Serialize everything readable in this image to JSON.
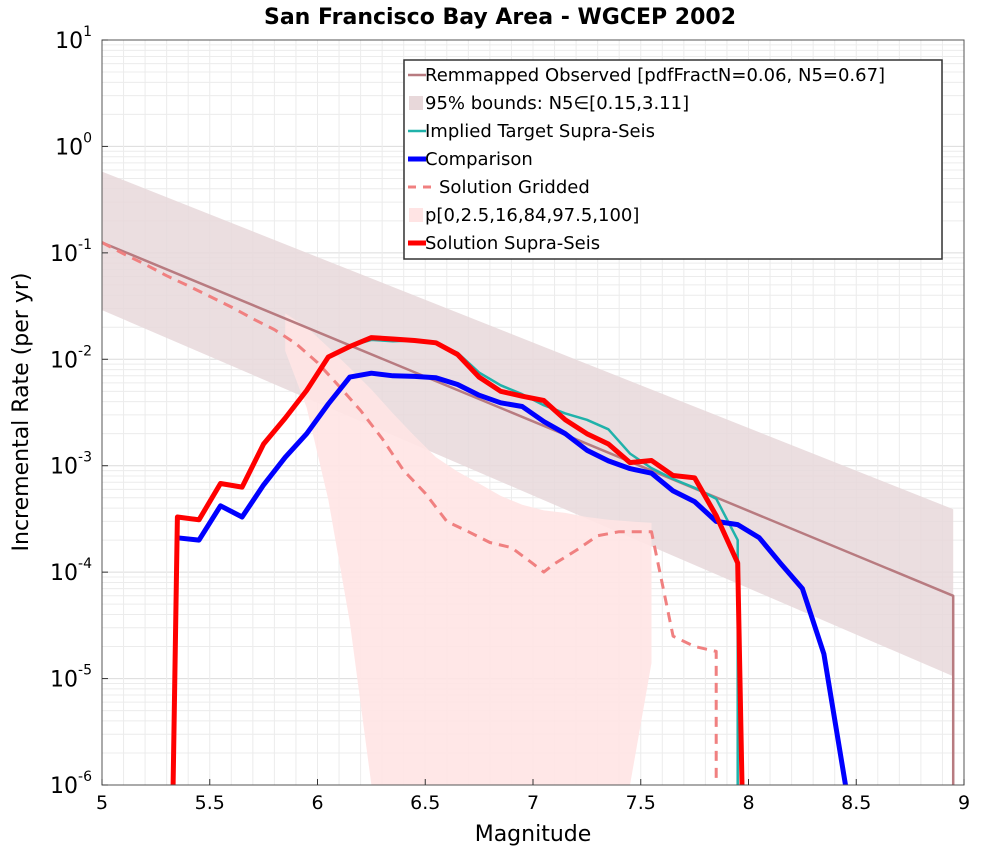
{
  "chart_data": {
    "type": "line",
    "title": "San Francisco Bay Area - WGCEP 2002",
    "xlabel": "Magnitude",
    "ylabel": "Incremental Rate (per yr)",
    "xlim": [
      5,
      9
    ],
    "ylim": [
      1e-06,
      10
    ],
    "yscale": "log",
    "grid": true,
    "legend_position": "top-right",
    "x_ticks": [
      "5",
      "5.5",
      "6",
      "6.5",
      "7",
      "7.5",
      "8",
      "8.5",
      "9"
    ],
    "y_ticks": [
      {
        "base": "10",
        "exp": "1",
        "value": 10
      },
      {
        "base": "10",
        "exp": "0",
        "value": 1
      },
      {
        "base": "10",
        "exp": "-1",
        "value": 0.1
      },
      {
        "base": "10",
        "exp": "-2",
        "value": 0.01
      },
      {
        "base": "10",
        "exp": "-3",
        "value": 0.001
      },
      {
        "base": "10",
        "exp": "-4",
        "value": 0.0001
      },
      {
        "base": "10",
        "exp": "-5",
        "value": 1e-05
      },
      {
        "base": "10",
        "exp": "-6",
        "value": 1e-06
      }
    ],
    "legend": [
      {
        "label": "Remmapped Observed [pdfFractN=0.06, N5=0.67]",
        "style": "line",
        "color": "#b87b80"
      },
      {
        "label": "95% bounds: N5∈[0.15,3.11]",
        "style": "band",
        "color": "#e8d8da"
      },
      {
        "label": "Implied Target Supra-Seis",
        "style": "line",
        "color": "#20b2aa"
      },
      {
        "label": "Comparison",
        "style": "thick",
        "color": "#0000ff"
      },
      {
        "label": "Solution Gridded",
        "style": "dash",
        "color": "#f08080"
      },
      {
        "label": "p[0,2.5,16,84,97.5,100]",
        "style": "band",
        "color": "#ffe4e4"
      },
      {
        "label": "Solution Supra-Seis",
        "style": "thick",
        "color": "#ff0000"
      }
    ],
    "series": [
      {
        "name": "Remmapped Observed [pdfFractN=0.06, N5=0.67]",
        "color": "#b87b80",
        "x": [
          5.0,
          8.95,
          8.95
        ],
        "y": [
          0.125,
          6e-05,
          1e-06
        ]
      },
      {
        "name": "95% bounds: N5∈[0.15,3.11]",
        "color": "#e8d8da",
        "x": [
          5.0,
          8.95
        ],
        "upper": [
          0.58,
          0.00039
        ],
        "lower": [
          0.029,
          1.05e-05
        ]
      },
      {
        "name": "Implied Target Supra-Seis",
        "color": "#20b2aa",
        "x": [
          5.35,
          5.45,
          5.55,
          5.65,
          5.75,
          5.85,
          5.95,
          6.05,
          6.15,
          6.25,
          6.35,
          6.45,
          6.55,
          6.65,
          6.75,
          6.85,
          6.95,
          7.05,
          7.15,
          7.25,
          7.35,
          7.45,
          7.55,
          7.65,
          7.75,
          7.85,
          7.95,
          7.95
        ],
        "y": [
          0.00033,
          0.00032,
          0.00068,
          0.00063,
          0.0016,
          0.0029,
          0.0052,
          0.0103,
          0.0133,
          0.0152,
          0.0148,
          0.015,
          0.014,
          0.0115,
          0.0075,
          0.0057,
          0.0047,
          0.0037,
          0.0031,
          0.0027,
          0.0022,
          0.0013,
          0.00095,
          0.00075,
          0.00062,
          0.00049,
          0.0002,
          1e-06
        ]
      },
      {
        "name": "Comparison",
        "color": "#0000ff",
        "x": [
          5.35,
          5.45,
          5.55,
          5.65,
          5.75,
          5.85,
          5.95,
          6.05,
          6.15,
          6.25,
          6.35,
          6.45,
          6.55,
          6.65,
          6.75,
          6.85,
          6.95,
          7.05,
          7.15,
          7.25,
          7.35,
          7.45,
          7.55,
          7.65,
          7.75,
          7.85,
          7.95,
          8.05,
          8.15,
          8.25,
          8.35,
          8.45
        ],
        "y": [
          0.00021,
          0.0002,
          0.00042,
          0.00033,
          0.00066,
          0.0012,
          0.002,
          0.0038,
          0.0068,
          0.0074,
          0.007,
          0.0069,
          0.0067,
          0.0058,
          0.0046,
          0.0039,
          0.0036,
          0.0026,
          0.002,
          0.0014,
          0.00111,
          0.00094,
          0.00085,
          0.00058,
          0.00046,
          0.0003,
          0.00028,
          0.00021,
          0.00012,
          7e-05,
          1.7e-05,
          1e-06
        ]
      },
      {
        "name": "Solution Gridded",
        "color": "#f08080",
        "x": [
          5.0,
          5.1,
          5.2,
          5.3,
          5.4,
          5.5,
          5.6,
          5.7,
          5.8,
          5.9,
          6.0,
          6.1,
          6.2,
          6.3,
          6.4,
          6.5,
          6.6,
          6.7,
          6.8,
          6.9,
          7.0,
          7.05,
          7.1,
          7.2,
          7.3,
          7.4,
          7.5,
          7.55,
          7.65,
          7.75,
          7.85,
          7.85
        ],
        "y": [
          0.125,
          0.098,
          0.078,
          0.061,
          0.049,
          0.039,
          0.031,
          0.024,
          0.019,
          0.014,
          0.0093,
          0.0056,
          0.0033,
          0.0018,
          0.0009,
          0.00055,
          0.0003,
          0.00024,
          0.00019,
          0.00017,
          0.00012,
          0.0001,
          0.00012,
          0.00016,
          0.00022,
          0.00024,
          0.00024,
          0.00024,
          2.5e-05,
          2e-05,
          1.8e-05,
          1e-06
        ]
      },
      {
        "name": "p[0,2.5,16,84,97.5,100]",
        "color": "#ffe4e4",
        "x": [
          5.85,
          5.95,
          6.05,
          6.15,
          6.25,
          6.35,
          6.45,
          6.55,
          6.65,
          6.75,
          6.85,
          6.95,
          7.05,
          7.15,
          7.25,
          7.35,
          7.45,
          7.55
        ],
        "upper": [
          0.027,
          0.02,
          0.013,
          0.0083,
          0.0052,
          0.0031,
          0.0019,
          0.0012,
          0.00088,
          0.00068,
          0.00052,
          0.00043,
          0.00038,
          0.00036,
          0.00033,
          0.00031,
          0.0003,
          0.00029
        ],
        "lower": [
          0.012,
          0.0035,
          0.00048,
          3.4e-05,
          1e-06,
          1e-06,
          1e-06,
          1e-06,
          1e-06,
          1e-06,
          1e-06,
          1e-06,
          1e-06,
          1e-06,
          1e-06,
          1e-06,
          1e-06,
          1.4e-05
        ]
      },
      {
        "name": "Solution Supra-Seis",
        "color": "#ff0000",
        "x": [
          5.33,
          5.35,
          5.45,
          5.55,
          5.65,
          5.75,
          5.85,
          5.95,
          6.05,
          6.15,
          6.25,
          6.35,
          6.45,
          6.55,
          6.65,
          6.75,
          6.85,
          6.95,
          7.05,
          7.15,
          7.25,
          7.35,
          7.45,
          7.55,
          7.65,
          7.75,
          7.85,
          7.95,
          7.97
        ],
        "y": [
          1e-06,
          0.00033,
          0.00031,
          0.00068,
          0.00063,
          0.0016,
          0.0028,
          0.0051,
          0.0105,
          0.0132,
          0.016,
          0.0155,
          0.015,
          0.0143,
          0.0111,
          0.0068,
          0.005,
          0.0045,
          0.0041,
          0.0027,
          0.002,
          0.0016,
          0.00107,
          0.00112,
          0.00081,
          0.00077,
          0.00034,
          0.000122,
          1e-06
        ]
      }
    ]
  }
}
